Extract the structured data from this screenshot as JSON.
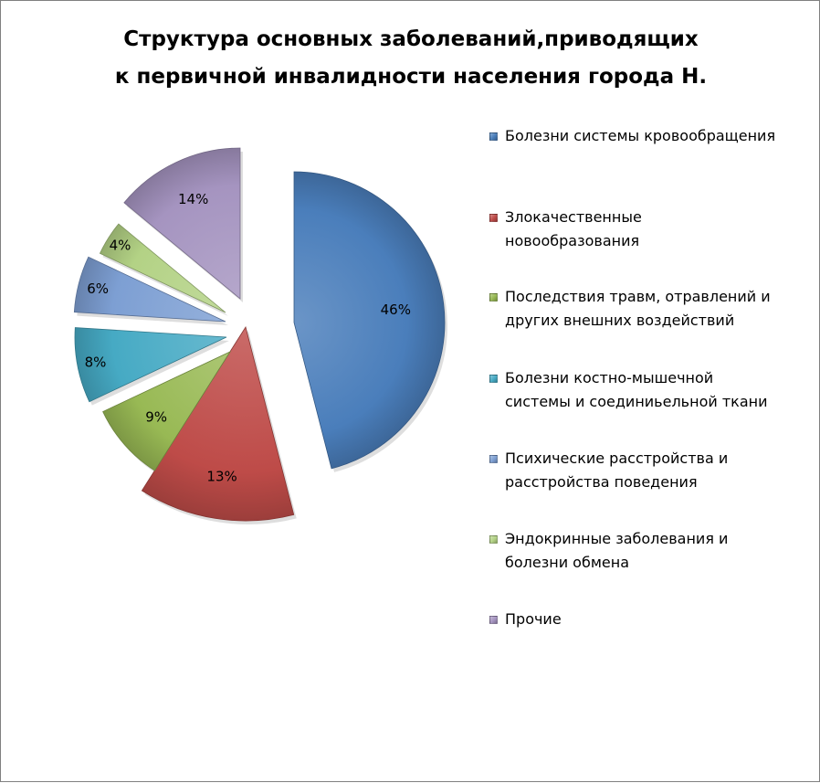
{
  "chart_data": {
    "type": "pie",
    "title_lines": [
      "Структура основных заболеваний,приводящих",
      "к первичной инвалидности  населения города Н."
    ],
    "categories": [
      "Болезни системы кровообращения",
      "Злокачественные новообразования",
      "Последствия травм, отравлений и других внешних воздействий",
      "Болезни костно-мышечной системы и соединиьельной ткани",
      "Психические расстройства и расстройства поведения",
      "Эндокринные заболевания и болезни обмена",
      "Прочие"
    ],
    "values": [
      46,
      13,
      9,
      8,
      6,
      4,
      14
    ],
    "data_labels": [
      "46%",
      "13%",
      "9%",
      "8%",
      "6%",
      "4%",
      "14%"
    ],
    "colors": [
      "#4a7ebb",
      "#be4b48",
      "#98b954",
      "#46aac4",
      "#7d9fd3",
      "#b3d285",
      "#a594c0"
    ],
    "legend_position": "right",
    "exploded": true
  }
}
